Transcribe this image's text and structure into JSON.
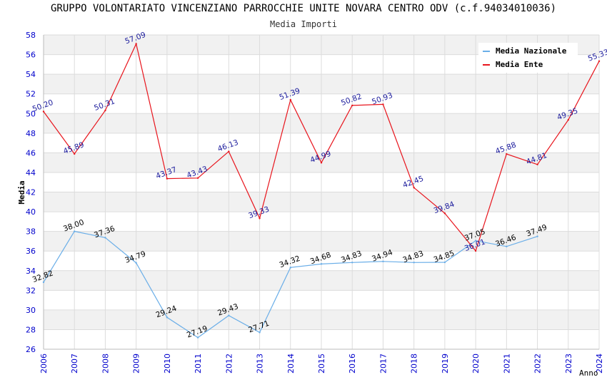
{
  "chart_data": {
    "type": "line",
    "title": "GRUPPO VOLONTARIATO VINCENZIANO PARROCCHIE UNITE NOVARA CENTRO ODV (c.f.94034010036)",
    "subtitle": "Media Importi",
    "xlabel": "Anno",
    "ylabel": "Media",
    "ylim": [
      26,
      58
    ],
    "yticks": [
      26,
      28,
      30,
      32,
      34,
      36,
      38,
      40,
      42,
      44,
      46,
      48,
      50,
      52,
      54,
      56,
      58
    ],
    "x": [
      "2006",
      "2007",
      "2008",
      "2009",
      "2010",
      "2011",
      "2012",
      "2013",
      "2014",
      "2015",
      "2016",
      "2017",
      "2018",
      "2019",
      "2020",
      "2021",
      "2022",
      "2023",
      "2024"
    ],
    "grid": true,
    "legend_position": "top-right",
    "series": [
      {
        "name": "Media Nazionale",
        "color": "#6aaee8",
        "label_color": "#000000",
        "values": [
          32.82,
          38.0,
          37.36,
          34.79,
          29.24,
          27.19,
          29.43,
          27.71,
          34.32,
          34.68,
          34.83,
          34.94,
          34.83,
          34.85,
          37.05,
          36.46,
          37.49,
          null,
          null
        ],
        "labels": [
          "32.82",
          "38.00",
          "37.36",
          "34.79",
          "29.24",
          "27.19",
          "29.43",
          "27.71",
          "34.32",
          "34.68",
          "34.83",
          "34.94",
          "34.83",
          "34.85",
          "37.05",
          "36.46",
          "37.49",
          null,
          null
        ]
      },
      {
        "name": "Media Ente",
        "color": "#e8141c",
        "label_color": "#1a1a9c",
        "values": [
          50.2,
          45.89,
          50.31,
          57.09,
          43.37,
          43.43,
          46.13,
          39.33,
          51.39,
          44.99,
          50.82,
          50.93,
          42.45,
          39.84,
          36.01,
          45.88,
          44.81,
          49.35,
          55.33
        ],
        "labels": [
          "50.20",
          "45.89",
          "50.31",
          "57.09",
          "43.37",
          "43.43",
          "46.13",
          "39.33",
          "51.39",
          "44.99",
          "50.82",
          "50.93",
          "42.45",
          "39.84",
          "36.01",
          "45.88",
          "44.81",
          "49.35",
          "55.33"
        ]
      }
    ]
  }
}
